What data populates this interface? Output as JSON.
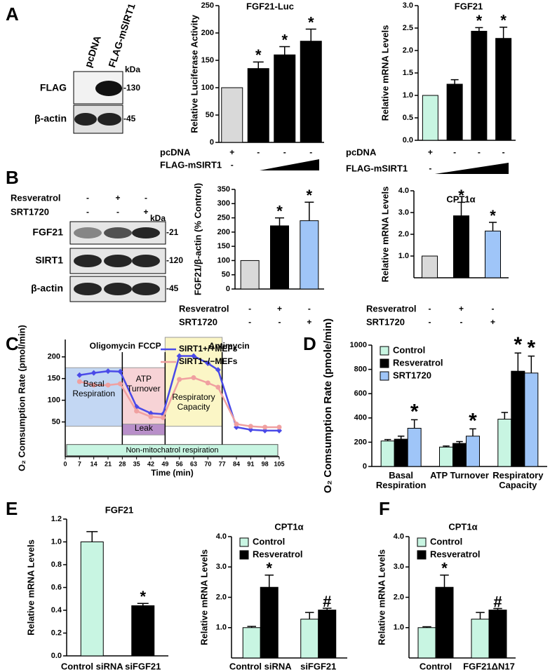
{
  "panel_labels": [
    "A",
    "B",
    "C",
    "D",
    "E",
    "F"
  ],
  "blots": [
    {
      "lanes": [
        "pcDNA",
        "FLAG-mSIRT1"
      ],
      "kda": "kDa",
      "rows": [
        {
          "name": "FLAG",
          "marker": "-130"
        },
        {
          "name": "β-actin",
          "marker": "-45"
        }
      ]
    },
    {
      "conditions": [
        {
          "name": "Resveratrol",
          "values": [
            "-",
            "+",
            "-"
          ]
        },
        {
          "name": "SRT1720",
          "values": [
            "-",
            "-",
            "+"
          ]
        }
      ],
      "kda": "kDa",
      "rows": [
        {
          "name": "FGF21",
          "marker": "-21"
        },
        {
          "name": "SIRT1",
          "marker": "-120"
        },
        {
          "name": "β-actin",
          "marker": "-45"
        }
      ]
    }
  ],
  "chart_data": [
    {
      "type": "bar",
      "title": "FGF21-Luc",
      "ylabel": "Relative Luciferase Activity",
      "values": [
        100,
        135,
        160,
        185
      ],
      "errors": [
        null,
        12,
        15,
        22
      ],
      "markers": [
        null,
        "*",
        "*",
        "*"
      ],
      "colors": [
        "#d9d9d9",
        "#000000",
        "#000000",
        "#000000"
      ],
      "conditions": [
        {
          "name": "pcDNA",
          "values": [
            "+",
            "-",
            "-",
            "-"
          ]
        },
        {
          "name": "FLAG-mSIRT1",
          "values": [
            "-",
            null,
            null,
            null
          ]
        }
      ],
      "ylim": [
        0,
        250
      ],
      "yticks": [
        0,
        50,
        100,
        150,
        200,
        250
      ]
    },
    {
      "type": "bar",
      "title": "FGF21",
      "ylabel": "Relative mRNA Levels",
      "values": [
        1,
        1.25,
        2.43,
        2.27
      ],
      "errors": [
        null,
        0.1,
        0.08,
        0.25
      ],
      "markers": [
        null,
        null,
        "*",
        "*"
      ],
      "colors": [
        "#c8f5e2",
        "#000000",
        "#000000",
        "#000000"
      ],
      "conditions": [
        {
          "name": "pcDNA",
          "values": [
            "+",
            "-",
            "-",
            "-"
          ]
        },
        {
          "name": "FLAG-mSIRT1",
          "values": [
            "-",
            null,
            null,
            null
          ]
        }
      ],
      "ylim": [
        0,
        3
      ],
      "yticks": [
        {
          "value": 0,
          "label": "0.0"
        },
        {
          "value": 0.5,
          "label": "0.5"
        },
        {
          "value": 1,
          "label": "1.0"
        },
        {
          "value": 1.5,
          "label": "1.5"
        },
        {
          "value": 2,
          "label": "2.0"
        },
        {
          "value": 2.5,
          "label": "2.5"
        },
        {
          "value": 3,
          "label": "3.0"
        }
      ]
    },
    {
      "type": "bar",
      "ylabel": "FGF21/β-actin (% Control)",
      "values": [
        100,
        222,
        240
      ],
      "errors": [
        null,
        28,
        65
      ],
      "markers": [
        null,
        "*",
        "*"
      ],
      "colors": [
        "#d9d9d9",
        "#000000",
        "#9fc5f8"
      ],
      "conditions": [
        {
          "name": "Resveratrol",
          "values": [
            "-",
            "+",
            "-"
          ]
        },
        {
          "name": "SRT1720",
          "values": [
            "-",
            "-",
            "+"
          ]
        }
      ],
      "ylim": [
        0,
        350
      ],
      "yticks": [
        0,
        50,
        100,
        150,
        200,
        250,
        300,
        350
      ]
    },
    {
      "type": "bar",
      "title": "CPT1α",
      "ylabel": "Relative mRNA Levels",
      "values": [
        1,
        2.85,
        2.15
      ],
      "errors": [
        null,
        0.62,
        0.4
      ],
      "markers": [
        null,
        "*",
        "*"
      ],
      "colors": [
        "#d9d9d9",
        "#000000",
        "#9fc5f8"
      ],
      "conditions": [
        {
          "name": "Resveratrol",
          "values": [
            "-",
            "+",
            "-"
          ]
        },
        {
          "name": "SRT1720",
          "values": [
            "-",
            "-",
            "+"
          ]
        }
      ],
      "ylim": [
        0,
        4
      ],
      "yticks": [
        {
          "value": 1,
          "label": "1.0"
        },
        {
          "value": 2,
          "label": "2.0"
        },
        {
          "value": 3,
          "label": "3.0"
        },
        {
          "value": 4,
          "label": "4.0"
        }
      ]
    },
    {
      "type": "line",
      "ylabel": "O₂ Comsumption Rate (pmol/min)",
      "xlabel": "Time (min)",
      "x": [
        7,
        14,
        21,
        27,
        35,
        42,
        48,
        56,
        63,
        70,
        75,
        84,
        91,
        98,
        105
      ],
      "series": [
        {
          "name": "SIRT1+/+MEFs",
          "color": "#4a4ae8",
          "marker": "diamond",
          "values": [
            158,
            163,
            167,
            166,
            85,
            70,
            68,
            202,
            202,
            185,
            170,
            38,
            32,
            30,
            30
          ]
        },
        {
          "name": "SIRT1−/−MEFs",
          "color": "#f0a0a0",
          "marker": "circle",
          "values": [
            143,
            135,
            135,
            138,
            75,
            62,
            60,
            148,
            152,
            140,
            130,
            45,
            40,
            38,
            38
          ]
        }
      ],
      "annotations": [
        "Oligomycin",
        "FCCP",
        "Antimycin"
      ],
      "regions": [
        {
          "label": "Basal Respiration",
          "color": "#c3d7f3"
        },
        {
          "label": "ATP Turnover",
          "color": "#f7d3d6"
        },
        {
          "label": "Leak",
          "color": "#b88fc9"
        },
        {
          "label": "Respiratory Capacity",
          "color": "#fbf6c6"
        },
        {
          "label": "Non-mitochatrol respiration",
          "color": "#c8f5e2"
        }
      ],
      "xlim": [
        0,
        105
      ],
      "xticks": [
        0,
        7,
        14,
        21,
        28,
        35,
        42,
        49,
        56,
        63,
        70,
        77,
        84,
        91,
        98,
        105
      ],
      "ylim": [
        -30,
        240
      ],
      "yticks": [
        50,
        100,
        150,
        200
      ]
    },
    {
      "type": "grouped-bar",
      "ylabel": "O₂ Comsumption Rate (pmole/min)",
      "categories": [
        "Basal Respiration",
        "ATP Turnover",
        "Respiratory Capacity"
      ],
      "series": [
        {
          "name": "Control",
          "color": "#c8f5e2",
          "values": [
            210,
            160,
            390
          ],
          "errors": [
            12,
            8,
            55
          ],
          "markers": [
            null,
            null,
            null
          ]
        },
        {
          "name": "Resveratrol",
          "color": "#000000",
          "values": [
            225,
            190,
            785
          ],
          "errors": [
            25,
            15,
            150
          ],
          "markers": [
            null,
            null,
            "*"
          ]
        },
        {
          "name": "SRT1720",
          "color": "#9fc5f8",
          "values": [
            315,
            250,
            770
          ],
          "errors": [
            70,
            60,
            140
          ],
          "markers": [
            "*",
            "*",
            "*"
          ]
        }
      ],
      "legend": "upper left",
      "ylim": [
        0,
        1000
      ],
      "yticks": [
        0,
        200,
        400,
        600,
        800,
        1000
      ]
    },
    {
      "type": "bar",
      "title": "FGF21",
      "ylabel": "Relative mRNA Levels",
      "categories": [
        "Control siRNA",
        "siFGF21"
      ],
      "values": [
        1,
        0.44
      ],
      "errors": [
        0.09,
        0.02
      ],
      "markers": [
        null,
        "*"
      ],
      "colors": [
        "#c8f5e2",
        "#000000"
      ],
      "ylim": [
        0,
        1.2
      ],
      "yticks": [
        {
          "value": 0,
          "label": "0.0"
        },
        {
          "value": 0.2,
          "label": "0.2"
        },
        {
          "value": 0.4,
          "label": "0.4"
        },
        {
          "value": 0.6,
          "label": "0.6"
        },
        {
          "value": 0.8,
          "label": "0.8"
        },
        {
          "value": 1,
          "label": "1.0"
        },
        {
          "value": 1.2,
          "label": "1.2"
        }
      ]
    },
    {
      "type": "grouped-bar",
      "title": "CPT1α",
      "ylabel": "Relative mRNA Levels",
      "categories": [
        "Control siRNA",
        "siFGF21"
      ],
      "series": [
        {
          "name": "Control",
          "color": "#c8f5e2",
          "values": [
            1,
            1.28
          ],
          "errors": [
            0.04,
            0.22
          ],
          "markers": [
            null,
            null
          ]
        },
        {
          "name": "Resveratrol",
          "color": "#000000",
          "values": [
            2.33,
            1.58
          ],
          "errors": [
            0.4,
            0.06
          ],
          "markers": [
            "*",
            "#"
          ]
        }
      ],
      "legend": "upper left",
      "ylim": [
        0,
        4
      ],
      "yticks": [
        {
          "value": 1,
          "label": "1.0"
        },
        {
          "value": 2,
          "label": "2.0"
        },
        {
          "value": 3,
          "label": "3.0"
        },
        {
          "value": 4,
          "label": "4.0"
        }
      ]
    },
    {
      "type": "grouped-bar",
      "title": "CPT1α",
      "ylabel": "Relative mRNA Levels",
      "categories": [
        "Control",
        "FGF21ΔN17"
      ],
      "series": [
        {
          "name": "Control",
          "color": "#c8f5e2",
          "values": [
            1,
            1.28
          ],
          "errors": [
            0.03,
            0.22
          ],
          "markers": [
            null,
            null
          ]
        },
        {
          "name": "Resveratrol",
          "color": "#000000",
          "values": [
            2.33,
            1.58
          ],
          "errors": [
            0.4,
            0.05
          ],
          "markers": [
            "*",
            "#"
          ]
        }
      ],
      "legend": "upper left",
      "ylim": [
        0,
        4
      ],
      "yticks": [
        {
          "value": 1,
          "label": "1.0"
        },
        {
          "value": 2,
          "label": "2.0"
        },
        {
          "value": 3,
          "label": "3.0"
        },
        {
          "value": 4,
          "label": "4.0"
        }
      ]
    }
  ]
}
